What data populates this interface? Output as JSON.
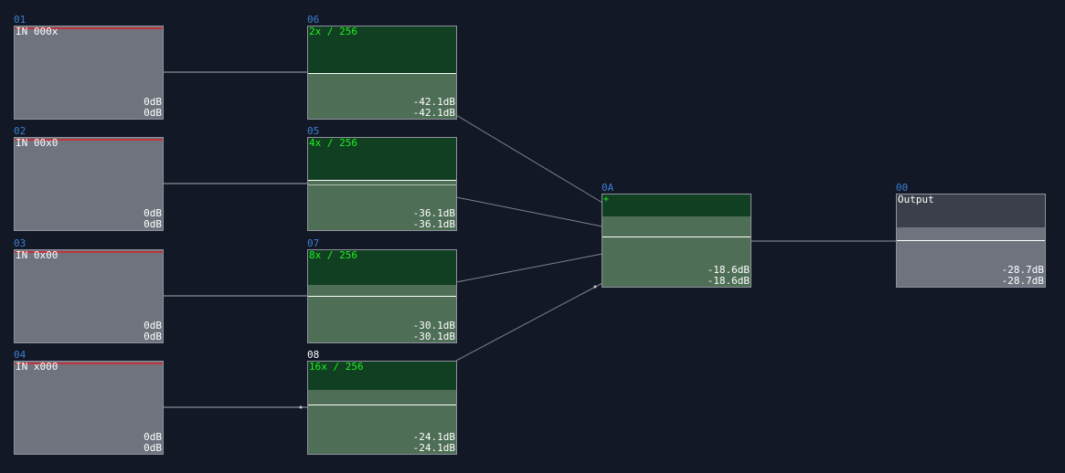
{
  "inputs": [
    {
      "id": "01",
      "title": "IN 000x",
      "db_top": "0dB",
      "db_bottom": "0dB"
    },
    {
      "id": "02",
      "title": "IN 00x0",
      "db_top": "0dB",
      "db_bottom": "0dB"
    },
    {
      "id": "03",
      "title": "IN 0x00",
      "db_top": "0dB",
      "db_bottom": "0dB"
    },
    {
      "id": "04",
      "title": "IN x000",
      "db_top": "0dB",
      "db_bottom": "0dB"
    }
  ],
  "resamplers": [
    {
      "id": "06",
      "title": "2x / 256",
      "db_top": "-42.1dB",
      "db_bottom": "-42.1dB"
    },
    {
      "id": "05",
      "title": "4x / 256",
      "db_top": "-36.1dB",
      "db_bottom": "-36.1dB"
    },
    {
      "id": "07",
      "title": "8x / 256",
      "db_top": "-30.1dB",
      "db_bottom": "-30.1dB"
    },
    {
      "id": "08",
      "title": "16x / 256",
      "db_top": "-24.1dB",
      "db_bottom": "-24.1dB"
    }
  ],
  "mixer": {
    "id": "0A",
    "title": "+",
    "db_top": "-18.6dB",
    "db_bottom": "-18.6dB"
  },
  "output": {
    "id": "00",
    "title": "Output",
    "db_top": "-28.7dB",
    "db_bottom": "-28.7dB"
  },
  "colors": {
    "background": "#131826",
    "node_id": "#3b7fd0",
    "input_fill": "#6e737e",
    "input_clip_bar": "#c0343c",
    "green_title": "#22ee22",
    "green_header": "#113f22",
    "green_fill": "#4e6e56",
    "output_header": "#3a3f4b",
    "output_fill": "#6e737e",
    "wire": "#c8ccd4"
  }
}
